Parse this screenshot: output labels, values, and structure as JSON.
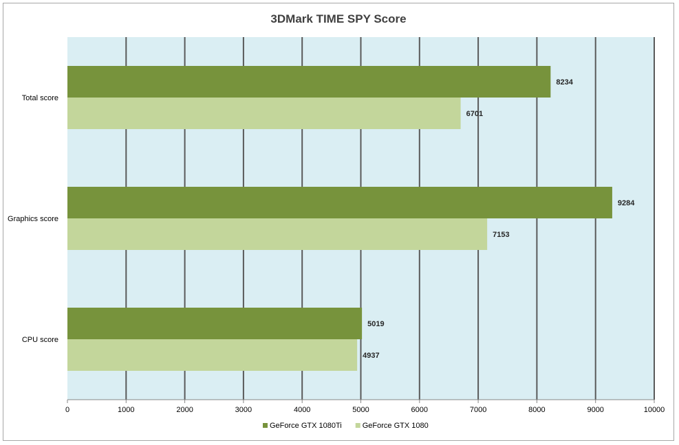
{
  "chart_data": {
    "type": "bar",
    "orientation": "horizontal",
    "title": "3DMark TIME SPY Score",
    "categories": [
      "Total score",
      "Graphics score",
      "CPU score"
    ],
    "series": [
      {
        "name": "GeForce GTX 1080Ti",
        "values": [
          8234,
          9284,
          5019
        ],
        "color": "#77933c"
      },
      {
        "name": "GeForce GTX 1080",
        "values": [
          6701,
          7153,
          4937
        ],
        "color": "#c3d69b"
      }
    ],
    "xlim": [
      0,
      10000
    ],
    "ticks": [
      "0",
      "1000",
      "2000",
      "3000",
      "4000",
      "5000",
      "6000",
      "7000",
      "8000",
      "9000",
      "10000"
    ],
    "grid": true,
    "legend_position": "bottom",
    "plot_background": "#daeef3"
  }
}
